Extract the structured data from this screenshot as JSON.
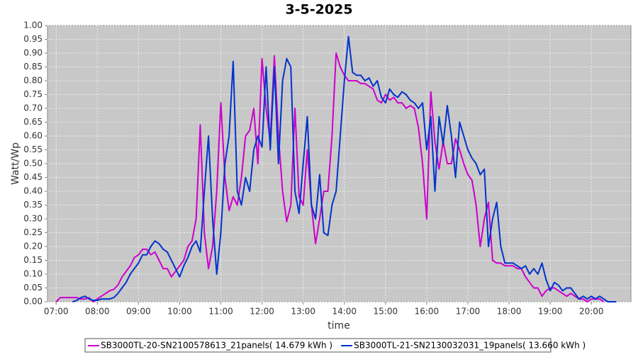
{
  "chart_data": {
    "type": "line",
    "title": "3-5-2025",
    "x_label": "time",
    "y_label": "Watt/Wp",
    "x": [
      7.0,
      7.1,
      7.2,
      7.3,
      7.4,
      7.5,
      7.6,
      7.7,
      7.8,
      7.9,
      8.0,
      8.1,
      8.2,
      8.3,
      8.4,
      8.5,
      8.6,
      8.7,
      8.8,
      8.9,
      9.0,
      9.1,
      9.2,
      9.3,
      9.4,
      9.5,
      9.6,
      9.7,
      9.8,
      9.9,
      10.0,
      10.1,
      10.2,
      10.3,
      10.4,
      10.5,
      10.6,
      10.7,
      10.8,
      10.9,
      11.0,
      11.1,
      11.2,
      11.3,
      11.4,
      11.5,
      11.6,
      11.7,
      11.8,
      11.9,
      12.0,
      12.1,
      12.2,
      12.3,
      12.4,
      12.5,
      12.6,
      12.7,
      12.8,
      12.9,
      13.0,
      13.1,
      13.2,
      13.3,
      13.4,
      13.5,
      13.6,
      13.7,
      13.8,
      13.9,
      14.0,
      14.1,
      14.2,
      14.3,
      14.4,
      14.5,
      14.6,
      14.7,
      14.8,
      14.9,
      15.0,
      15.1,
      15.2,
      15.3,
      15.4,
      15.5,
      15.6,
      15.7,
      15.8,
      15.9,
      16.0,
      16.1,
      16.2,
      16.3,
      16.4,
      16.5,
      16.6,
      16.7,
      16.8,
      16.9,
      17.0,
      17.1,
      17.2,
      17.3,
      17.4,
      17.5,
      17.6,
      17.7,
      17.8,
      17.9,
      18.0,
      18.1,
      18.2,
      18.3,
      18.4,
      18.5,
      18.6,
      18.7,
      18.8,
      18.9,
      19.0,
      19.1,
      19.2,
      19.3,
      19.4,
      19.5,
      19.6,
      19.7,
      19.8,
      19.9,
      20.0,
      20.1,
      20.2,
      20.3,
      20.4,
      20.5,
      20.6
    ],
    "series": [
      {
        "name": "SB3000TL-20-SN2100578613_21panels( 14.679 kWh )",
        "color": "#cc00cc",
        "values": [
          0,
          0.015,
          0.015,
          0.015,
          0.015,
          0.015,
          0.01,
          0.01,
          0.015,
          0,
          0.01,
          0.02,
          0.03,
          0.04,
          0.045,
          0.06,
          0.09,
          0.11,
          0.13,
          0.16,
          0.17,
          0.19,
          0.19,
          0.17,
          0.18,
          0.15,
          0.12,
          0.12,
          0.09,
          0.11,
          0.13,
          0.15,
          0.2,
          0.22,
          0.3,
          0.64,
          0.25,
          0.12,
          0.2,
          0.4,
          0.72,
          0.45,
          0.33,
          0.38,
          0.35,
          0.45,
          0.6,
          0.62,
          0.7,
          0.5,
          0.88,
          0.7,
          0.58,
          0.89,
          0.6,
          0.4,
          0.29,
          0.35,
          0.7,
          0.38,
          0.35,
          0.55,
          0.35,
          0.21,
          0.3,
          0.4,
          0.4,
          0.6,
          0.9,
          0.85,
          0.82,
          0.8,
          0.8,
          0.8,
          0.79,
          0.79,
          0.78,
          0.77,
          0.73,
          0.72,
          0.75,
          0.73,
          0.74,
          0.72,
          0.72,
          0.7,
          0.71,
          0.7,
          0.63,
          0.5,
          0.3,
          0.76,
          0.58,
          0.48,
          0.58,
          0.5,
          0.5,
          0.59,
          0.55,
          0.5,
          0.46,
          0.44,
          0.35,
          0.2,
          0.3,
          0.36,
          0.15,
          0.14,
          0.14,
          0.13,
          0.13,
          0.13,
          0.12,
          0.12,
          0.09,
          0.07,
          0.05,
          0.05,
          0.02,
          0.04,
          0.05,
          0.05,
          0.04,
          0.03,
          0.02,
          0.03,
          0.02,
          0.01,
          0.01,
          0,
          0.01,
          0.01,
          0.01,
          0,
          null,
          null,
          null
        ]
      },
      {
        "name": "SB3000TL-21-SN2130032031_19panels( 13.660 kWh )",
        "color": "#0033cc",
        "values": [
          null,
          null,
          null,
          null,
          0,
          0.005,
          0.015,
          0.02,
          0.01,
          0.005,
          0.005,
          0.01,
          0.01,
          0.01,
          0.015,
          0.03,
          0.05,
          0.07,
          0.1,
          0.12,
          0.14,
          0.17,
          0.17,
          0.2,
          0.22,
          0.21,
          0.19,
          0.18,
          0.15,
          0.12,
          0.09,
          0.13,
          0.16,
          0.2,
          0.22,
          0.18,
          0.4,
          0.6,
          0.3,
          0.1,
          0.25,
          0.5,
          0.6,
          0.87,
          0.4,
          0.35,
          0.45,
          0.4,
          0.55,
          0.6,
          0.56,
          0.85,
          0.55,
          0.85,
          0.5,
          0.8,
          0.88,
          0.85,
          0.4,
          0.32,
          0.5,
          0.67,
          0.35,
          0.3,
          0.46,
          0.25,
          0.24,
          0.35,
          0.4,
          0.6,
          0.8,
          0.96,
          0.83,
          0.82,
          0.82,
          0.8,
          0.81,
          0.78,
          0.8,
          0.74,
          0.72,
          0.77,
          0.75,
          0.74,
          0.76,
          0.75,
          0.73,
          0.72,
          0.7,
          0.72,
          0.55,
          0.67,
          0.4,
          0.67,
          0.57,
          0.71,
          0.6,
          0.45,
          0.65,
          0.6,
          0.55,
          0.52,
          0.5,
          0.46,
          0.48,
          0.2,
          0.3,
          0.36,
          0.2,
          0.14,
          0.14,
          0.14,
          0.13,
          0.12,
          0.13,
          0.1,
          0.12,
          0.1,
          0.14,
          0.08,
          0.04,
          0.07,
          0.06,
          0.04,
          0.05,
          0.05,
          0.03,
          0.01,
          0.02,
          0.01,
          0.02,
          0.01,
          0.02,
          0.01,
          0,
          0,
          0
        ]
      }
    ],
    "xlim": [
      6.79,
      20.96
    ],
    "xticks": [
      {
        "value": 7,
        "label": "07:00"
      },
      {
        "value": 8,
        "label": "08:00"
      },
      {
        "value": 9,
        "label": "09:00"
      },
      {
        "value": 10,
        "label": "10:00"
      },
      {
        "value": 11,
        "label": "11:00"
      },
      {
        "value": 12,
        "label": "12:00"
      },
      {
        "value": 13,
        "label": "13:00"
      },
      {
        "value": 14,
        "label": "14:00"
      },
      {
        "value": 15,
        "label": "15:00"
      },
      {
        "value": 16,
        "label": "16:00"
      },
      {
        "value": 17,
        "label": "17:00"
      },
      {
        "value": 18,
        "label": "18:00"
      },
      {
        "value": 19,
        "label": "19:00"
      },
      {
        "value": 20,
        "label": "20:00"
      }
    ],
    "ylim": [
      0,
      1
    ],
    "yticks": [
      {
        "value": 0,
        "label": "0.00"
      },
      {
        "value": 0.05,
        "label": "0.05"
      },
      {
        "value": 0.1,
        "label": "0.10"
      },
      {
        "value": 0.15,
        "label": "0.15"
      },
      {
        "value": 0.2,
        "label": "0.20"
      },
      {
        "value": 0.25,
        "label": "0.25"
      },
      {
        "value": 0.3,
        "label": "0.30"
      },
      {
        "value": 0.35,
        "label": "0.35"
      },
      {
        "value": 0.4,
        "label": "0.40"
      },
      {
        "value": 0.45,
        "label": "0.45"
      },
      {
        "value": 0.5,
        "label": "0.50"
      },
      {
        "value": 0.55,
        "label": "0.55"
      },
      {
        "value": 0.6,
        "label": "0.60"
      },
      {
        "value": 0.65,
        "label": "0.65"
      },
      {
        "value": 0.7,
        "label": "0.70"
      },
      {
        "value": 0.75,
        "label": "0.75"
      },
      {
        "value": 0.8,
        "label": "0.80"
      },
      {
        "value": 0.85,
        "label": "0.85"
      },
      {
        "value": 0.9,
        "label": "0.90"
      },
      {
        "value": 0.95,
        "label": "0.95"
      },
      {
        "value": 1,
        "label": "1.00"
      }
    ],
    "grid": true,
    "legend": "bottom"
  }
}
